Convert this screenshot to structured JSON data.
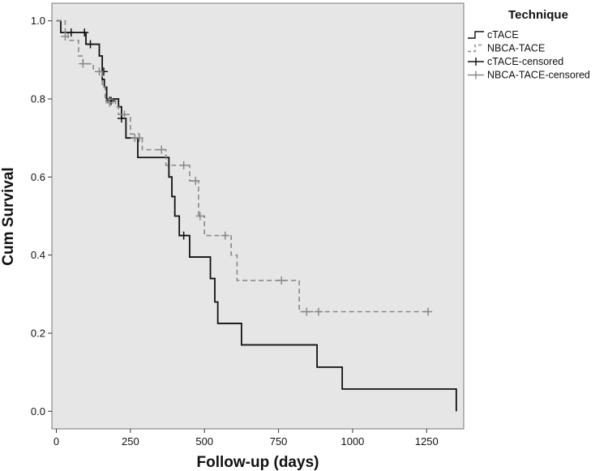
{
  "chart_data": {
    "type": "line",
    "subtype": "kaplan-meier",
    "xlabel": "Follow-up (days)",
    "ylabel": "Cum Survival",
    "xlim": [
      -15,
      1375
    ],
    "ylim": [
      -0.045,
      1.045
    ],
    "xticks": [
      0,
      250,
      500,
      750,
      1000,
      1250
    ],
    "yticks": [
      0.0,
      0.2,
      0.4,
      0.6,
      0.8,
      1.0
    ],
    "xtick_labels": [
      "0",
      "250",
      "500",
      "750",
      "1000",
      "1250"
    ],
    "ytick_labels": [
      "0.0",
      "0.2",
      "0.4",
      "0.6",
      "0.8",
      "1.0"
    ],
    "grid": false,
    "background": "#e6e6e6",
    "legend": {
      "title": "Technique",
      "placement": "right-top-outside",
      "entries": [
        "cTACE",
        "NBCA-TACE",
        "cTACE-censored",
        "NBCA-TACE-censored"
      ]
    },
    "series": [
      {
        "name": "cTACE",
        "color": "#111111",
        "dash": "solid",
        "steps": [
          [
            0,
            1.0
          ],
          [
            15,
            0.97
          ],
          [
            100,
            0.94
          ],
          [
            145,
            0.91
          ],
          [
            155,
            0.85
          ],
          [
            162,
            0.83
          ],
          [
            170,
            0.8
          ],
          [
            210,
            0.78
          ],
          [
            220,
            0.75
          ],
          [
            235,
            0.7
          ],
          [
            275,
            0.65
          ],
          [
            380,
            0.6
          ],
          [
            390,
            0.55
          ],
          [
            400,
            0.5
          ],
          [
            415,
            0.45
          ],
          [
            450,
            0.395
          ],
          [
            520,
            0.34
          ],
          [
            535,
            0.28
          ],
          [
            545,
            0.225
          ],
          [
            625,
            0.17
          ],
          [
            880,
            0.113
          ],
          [
            965,
            0.057
          ],
          [
            1350,
            0.057
          ]
        ],
        "end": [
          1350,
          0.0
        ],
        "censored": [
          [
            50,
            0.97
          ],
          [
            95,
            0.97
          ],
          [
            115,
            0.94
          ],
          [
            160,
            0.87
          ],
          [
            180,
            0.795
          ],
          [
            185,
            0.795
          ],
          [
            220,
            0.75
          ],
          [
            430,
            0.45
          ]
        ]
      },
      {
        "name": "NBCA-TACE",
        "color": "#888888",
        "dash": "dashed",
        "steps": [
          [
            0,
            1.0
          ],
          [
            30,
            0.97
          ],
          [
            40,
            0.95
          ],
          [
            75,
            0.91
          ],
          [
            90,
            0.89
          ],
          [
            125,
            0.87
          ],
          [
            155,
            0.83
          ],
          [
            165,
            0.8
          ],
          [
            200,
            0.78
          ],
          [
            210,
            0.76
          ],
          [
            250,
            0.71
          ],
          [
            280,
            0.7
          ],
          [
            290,
            0.67
          ],
          [
            370,
            0.63
          ],
          [
            450,
            0.59
          ],
          [
            480,
            0.5
          ],
          [
            500,
            0.45
          ],
          [
            590,
            0.4
          ],
          [
            610,
            0.335
          ],
          [
            820,
            0.255
          ],
          [
            1260,
            0.255
          ]
        ],
        "censored": [
          [
            30,
            0.96
          ],
          [
            90,
            0.89
          ],
          [
            145,
            0.87
          ],
          [
            180,
            0.79
          ],
          [
            230,
            0.76
          ],
          [
            265,
            0.7
          ],
          [
            280,
            0.7
          ],
          [
            355,
            0.67
          ],
          [
            430,
            0.63
          ],
          [
            470,
            0.59
          ],
          [
            485,
            0.5
          ],
          [
            570,
            0.45
          ],
          [
            760,
            0.335
          ],
          [
            845,
            0.255
          ],
          [
            885,
            0.255
          ],
          [
            1255,
            0.255
          ]
        ]
      }
    ]
  }
}
